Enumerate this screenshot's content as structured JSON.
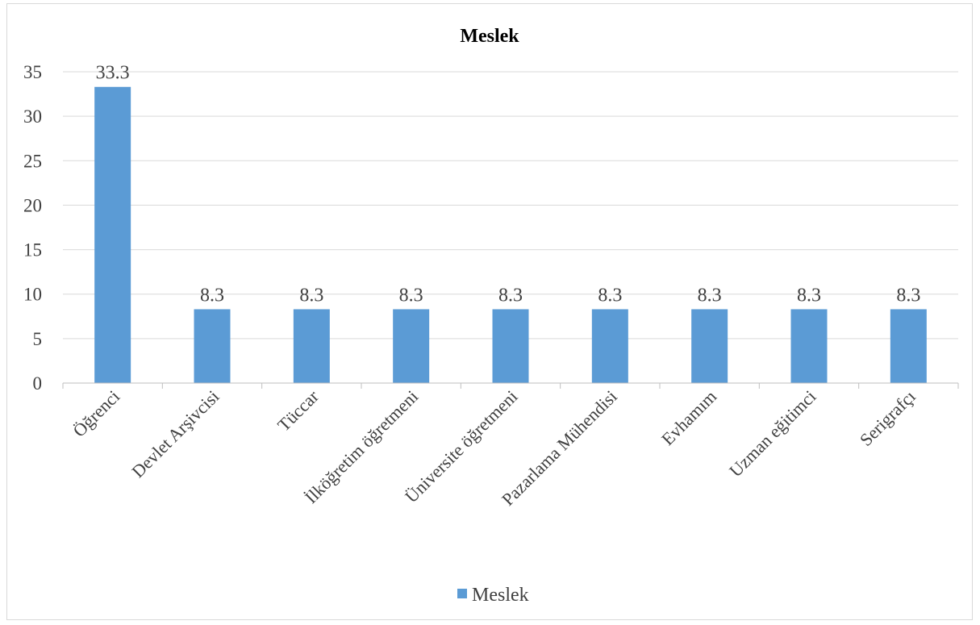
{
  "chart_data": {
    "type": "bar",
    "title": "Meslek",
    "categories": [
      "Öğrenci",
      "Devlet Arşivcisi",
      "Tüccar",
      "İlköğretim öğretmeni",
      "Üniversite öğretmeni",
      "Pazarlama Mühendisi",
      "Evhamım",
      "Uzman eğitimci",
      "Serigrafçı"
    ],
    "series": [
      {
        "name": "Meslek",
        "values": [
          33.3,
          8.3,
          8.3,
          8.3,
          8.3,
          8.3,
          8.3,
          8.3,
          8.3
        ]
      }
    ],
    "data_labels": [
      "33.3",
      "8.3",
      "8.3",
      "8.3",
      "8.3",
      "8.3",
      "8.3",
      "8.3",
      "8.3"
    ],
    "ylim": [
      0,
      35
    ],
    "yticks": [
      0,
      5,
      10,
      15,
      20,
      25,
      30,
      35
    ],
    "xlabel": "",
    "ylabel": "",
    "grid": true,
    "legend_position": "bottom",
    "bar_color": "#5b9bd5"
  }
}
